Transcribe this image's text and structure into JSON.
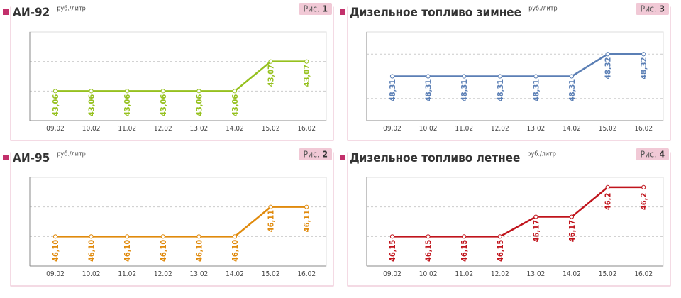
{
  "chart_data": [
    {
      "type": "line",
      "title": "АИ-92",
      "unit": "руб./литр",
      "figure_label": "Рис.",
      "figure_number": "1",
      "categories": [
        "09.02",
        "10.02",
        "11.02",
        "12.02",
        "13.02",
        "14.02",
        "15.02",
        "16.02"
      ],
      "values": [
        43.06,
        43.06,
        43.06,
        43.06,
        43.06,
        43.06,
        43.07,
        43.07
      ],
      "value_labels": [
        "43,06",
        "43,06",
        "43,06",
        "43,06",
        "43,06",
        "43,06",
        "43,07",
        "43,07"
      ],
      "color": "#96c11f",
      "ylim": [
        43.05,
        43.08
      ],
      "yticks": [
        43.06,
        43.07
      ],
      "grid": true
    },
    {
      "type": "line",
      "title": "Дизельное топливо зимнее",
      "unit": "руб./литр",
      "figure_label": "Рис.",
      "figure_number": "3",
      "categories": [
        "09.02",
        "10.02",
        "11.02",
        "12.02",
        "13.02",
        "14.02",
        "15.02",
        "16.02"
      ],
      "values": [
        48.31,
        48.31,
        48.31,
        48.31,
        48.31,
        48.31,
        48.32,
        48.32
      ],
      "value_labels": [
        "48,31",
        "48,31",
        "48,31",
        "48,31",
        "48,31",
        "48,31",
        "48,32",
        "48,32"
      ],
      "color": "#5b7fb5",
      "ylim": [
        48.29,
        48.33
      ],
      "yticks": [
        48.3,
        48.32
      ],
      "grid": true
    },
    {
      "type": "line",
      "title": "АИ-95",
      "unit": "руб./литр",
      "figure_label": "Рис.",
      "figure_number": "2",
      "categories": [
        "09.02",
        "10.02",
        "11.02",
        "12.02",
        "13.02",
        "14.02",
        "15.02",
        "16.02"
      ],
      "values": [
        46.1,
        46.1,
        46.1,
        46.1,
        46.1,
        46.1,
        46.11,
        46.11
      ],
      "value_labels": [
        "46,10",
        "46,10",
        "46,10",
        "46,10",
        "46,10",
        "46,10",
        "46,11",
        "46,11"
      ],
      "color": "#e08a0c",
      "ylim": [
        46.09,
        46.12
      ],
      "yticks": [
        46.1,
        46.11
      ],
      "grid": true
    },
    {
      "type": "line",
      "title": "Дизельное топливо летнее",
      "unit": "руб./литр",
      "figure_label": "Рис.",
      "figure_number": "4",
      "categories": [
        "09.02",
        "10.02",
        "11.02",
        "12.02",
        "13.02",
        "14.02",
        "15.02",
        "16.02"
      ],
      "values": [
        46.15,
        46.15,
        46.15,
        46.15,
        46.17,
        46.17,
        46.2,
        46.2
      ],
      "value_labels": [
        "46,15",
        "46,15",
        "46,15",
        "46,15",
        "46,17",
        "46,17",
        "46,2",
        "46,2"
      ],
      "color": "#c0141c",
      "ylim": [
        46.12,
        46.21
      ],
      "yticks": [
        46.15,
        46.18
      ],
      "grid": true
    }
  ]
}
